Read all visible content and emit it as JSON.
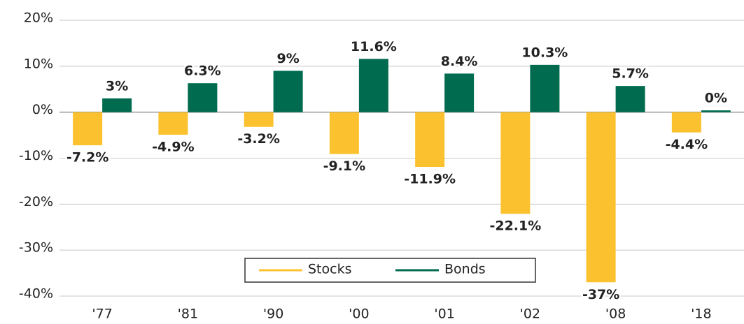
{
  "chart_data": {
    "type": "bar",
    "categories": [
      "'77",
      "'81",
      "'90",
      "'00",
      "'01",
      "'02",
      "'08",
      "'18"
    ],
    "series": [
      {
        "name": "Stocks",
        "color": "#fcc12f",
        "values": [
          -7.2,
          -4.9,
          -3.2,
          -9.1,
          -11.9,
          -22.1,
          -37,
          -4.4
        ],
        "value_labels": [
          "-7.2%",
          "-4.9%",
          "-3.2%",
          "-9.1%",
          "-11.9%",
          "-22.1%",
          "-37%",
          "-4.4%"
        ]
      },
      {
        "name": "Bonds",
        "color": "#006b4f",
        "values": [
          3,
          6.3,
          9,
          11.6,
          8.4,
          10.3,
          5.7,
          0.4
        ],
        "value_labels": [
          "3%",
          "6.3%",
          "9%",
          "11.6%",
          "8.4%",
          "10.3%",
          "5.7%",
          "0%"
        ]
      }
    ],
    "ylim": [
      -40,
      20
    ],
    "yticks": [
      {
        "value": -40,
        "label": "-40%"
      },
      {
        "value": -30,
        "label": "-30%"
      },
      {
        "value": -20,
        "label": "-20%"
      },
      {
        "value": -10,
        "label": "-10%"
      },
      {
        "value": 0,
        "label": "0%"
      },
      {
        "value": 10,
        "label": "10%"
      },
      {
        "value": 20,
        "label": "20%"
      }
    ],
    "grid": true,
    "legend": "bottom"
  }
}
